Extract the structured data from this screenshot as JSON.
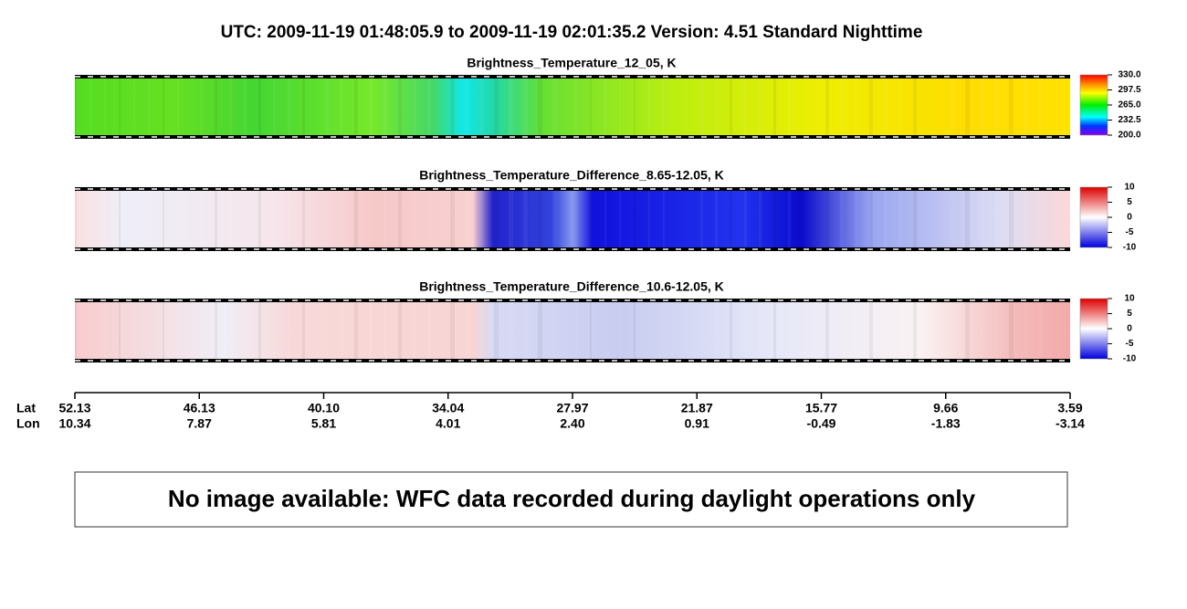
{
  "title": "UTC:  2009-11-19   01:48:05.9  to  2009-11-19   02:01:35.2    Version: 4.51  Standard Nighttime",
  "panels": [
    {
      "title": "Brightness_Temperature_12_05, K",
      "lim": [
        200,
        330
      ],
      "ticks": [
        {
          "value": 330,
          "label": "330.0"
        },
        {
          "value": 297.5,
          "label": "297.5"
        },
        {
          "value": 265,
          "label": "265.0"
        },
        {
          "value": 232.5,
          "label": "232.5"
        },
        {
          "value": 200,
          "label": "200.0"
        }
      ]
    },
    {
      "title": "Brightness_Temperature_Difference_8.65-12.05, K",
      "lim": [
        -10,
        10
      ],
      "ticks": [
        10,
        5,
        0,
        -5,
        -10
      ]
    },
    {
      "title": "Brightness_Temperature_Difference_10.6-12.05, K",
      "lim": [
        -10,
        10
      ],
      "ticks": [
        10,
        5,
        0,
        -5,
        -10
      ]
    }
  ],
  "x_axis": {
    "lat_label": "Lat",
    "lon_label": "Lon",
    "lat": [
      52.13,
      "46.13",
      {
        "value": 40.1,
        "label": "40.10"
      },
      34.04,
      27.97,
      21.87,
      15.77,
      9.66,
      3.59
    ],
    "lon": [
      10.34,
      7.87,
      5.81,
      4.01,
      {
        "value": 2.4,
        "label": "2.40"
      },
      0.91,
      -0.49,
      -1.83,
      -3.14
    ]
  },
  "message": "No image available: WFC data recorded during daylight operations only"
}
